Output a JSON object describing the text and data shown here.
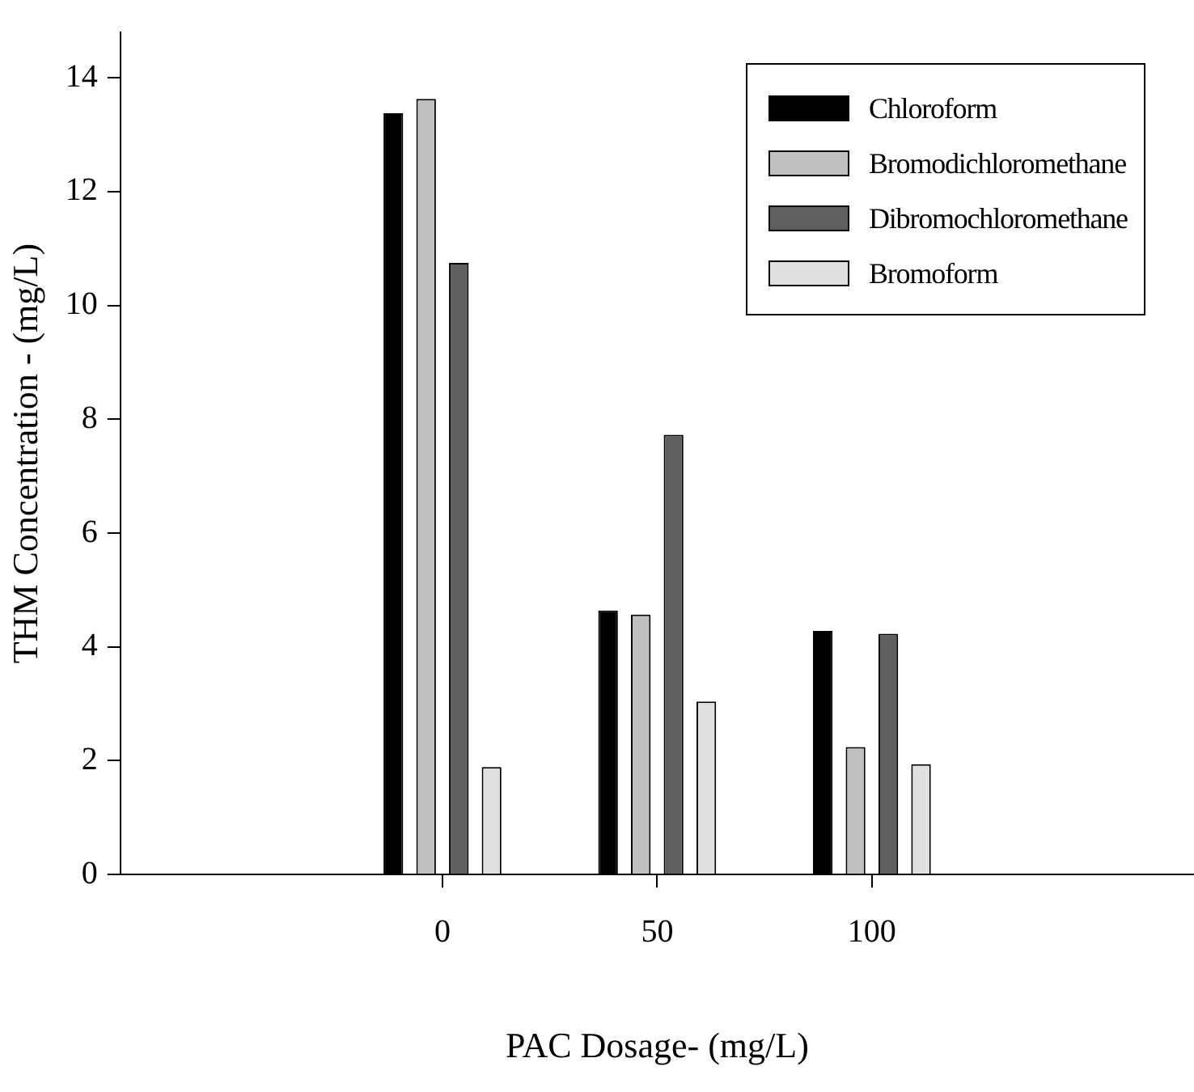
{
  "chart_data": {
    "type": "bar",
    "xlabel": "PAC Dosage- (mg/L)",
    "ylabel": "THM Concentration - (mg/L)",
    "categories": [
      "0",
      "50",
      "100"
    ],
    "series": [
      {
        "name": "Chloroform",
        "color": "#000000",
        "values": [
          13.38,
          4.64,
          4.28
        ]
      },
      {
        "name": "Bromodichloromethane",
        "color": "#c0c0c0",
        "values": [
          13.63,
          4.57,
          2.24
        ]
      },
      {
        "name": "Dibromochloromethane",
        "color": "#606060",
        "values": [
          10.75,
          7.73,
          4.23
        ]
      },
      {
        "name": "Bromoform",
        "color": "#e0e0e0",
        "values": [
          1.89,
          3.04,
          1.94
        ]
      }
    ],
    "ylim": [
      0,
      14.8
    ],
    "yticks": [
      0,
      2,
      4,
      6,
      8,
      10,
      12,
      14
    ],
    "grid": false,
    "legend": "top right"
  }
}
